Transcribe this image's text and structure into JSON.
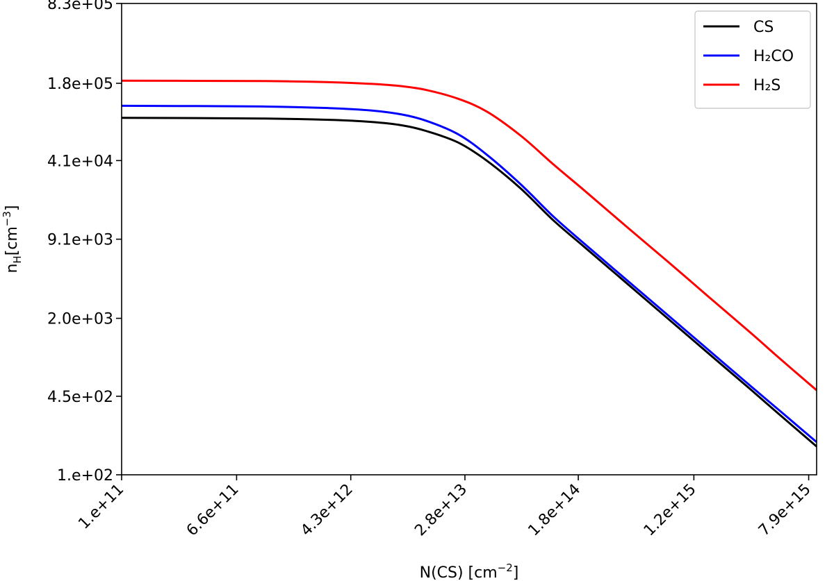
{
  "chart_data": {
    "type": "line",
    "title": "",
    "xlabel": "N(CS) [cm",
    "xlabel_sup": "−2",
    "xlabel_end": "]",
    "ylabel": "n",
    "ylabel_sub": "H",
    "ylabel_mid": "[cm",
    "ylabel_sup": "−3",
    "ylabel_end": "]",
    "x_scale": "log",
    "y_scale": "log",
    "xlim": [
      100000000000.0,
      9000000000000000.0
    ],
    "ylim": [
      100,
      830000
    ],
    "x_ticks": [
      {
        "value": 100000000000.0,
        "label": "1.e+11"
      },
      {
        "value": 660000000000.0,
        "label": "6.6e+11"
      },
      {
        "value": 4300000000000.0,
        "label": "4.3e+12"
      },
      {
        "value": 28000000000000.0,
        "label": "2.8e+13"
      },
      {
        "value": 180000000000000.0,
        "label": "1.8e+14"
      },
      {
        "value": 1200000000000000.0,
        "label": "1.2e+15"
      },
      {
        "value": 7900000000000000.0,
        "label": "7.9e+15"
      }
    ],
    "y_ticks": [
      {
        "value": 100,
        "label": "1.e+02"
      },
      {
        "value": 450,
        "label": "4.5e+02"
      },
      {
        "value": 2000,
        "label": "2.0e+03"
      },
      {
        "value": 9100,
        "label": "9.1e+03"
      },
      {
        "value": 41000,
        "label": "4.1e+04"
      },
      {
        "value": 180000,
        "label": "1.8e+05"
      },
      {
        "value": 830000,
        "label": "8.3e+05"
      }
    ],
    "legend_position": "top-right",
    "x": [
      100000000000.0,
      1000000000000.0,
      3000000000000.0,
      6000000000000.0,
      10000000000000.0,
      15000000000000.0,
      25000000000000.0,
      40000000000000.0,
      70000000000000.0,
      120000000000000.0,
      200000000000000.0,
      400000000000000.0,
      800000000000000.0,
      1500000000000000.0,
      3000000000000000.0,
      5000000000000000.0,
      9000000000000000.0
    ],
    "series": [
      {
        "name": "CS",
        "color": "#000000",
        "values": [
          93000,
          91800,
          89500,
          86000,
          80500,
          72000,
          58000,
          41000,
          24000,
          13000,
          7800,
          3900,
          1950,
          1040,
          520,
          310,
          172
        ]
      },
      {
        "name": "H₂CO",
        "color": "#0000ff",
        "values": [
          117000,
          115500,
          112000,
          107000,
          99000,
          87500,
          68000,
          46000,
          26000,
          14000,
          8300,
          4150,
          2080,
          1110,
          555,
          335,
          187
        ]
      },
      {
        "name": "H₂S",
        "color": "#ff0000",
        "values": [
          189000,
          188000,
          184000,
          178000,
          170000,
          158000,
          134000,
          105000,
          66000,
          38000,
          23000,
          11500,
          5800,
          3080,
          1540,
          910,
          505
        ]
      }
    ]
  }
}
